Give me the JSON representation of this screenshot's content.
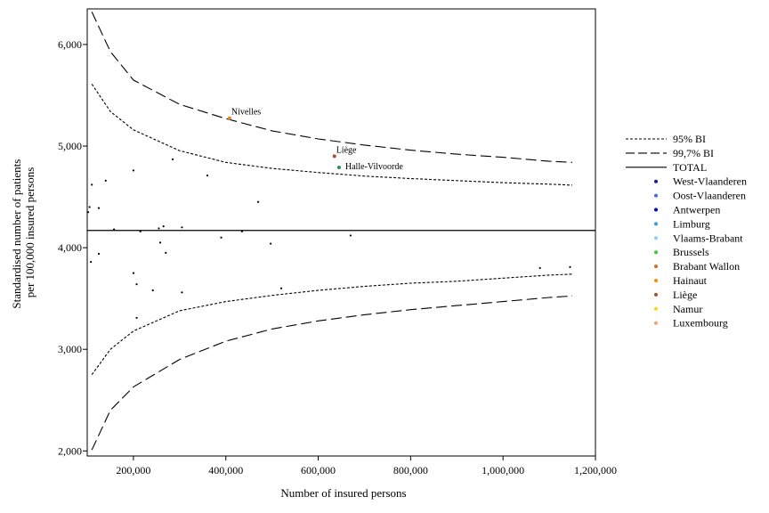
{
  "chart_data": {
    "type": "scatter",
    "xlabel": "Number of insured persons",
    "ylabel": [
      "Standardised number of patients",
      "per 100,000 insured persons"
    ],
    "xlim": [
      100000,
      1200000
    ],
    "ylim": [
      1950,
      6350
    ],
    "xticks": [
      {
        "value": 200000,
        "label": "200,000"
      },
      {
        "value": 400000,
        "label": "400,000"
      },
      {
        "value": 600000,
        "label": "600,000"
      },
      {
        "value": 800000,
        "label": "800,000"
      },
      {
        "value": 1000000,
        "label": "1,000,000"
      },
      {
        "value": 1200000,
        "label": "1,200,000"
      }
    ],
    "yticks": [
      {
        "value": 2000,
        "label": "2,000"
      },
      {
        "value": 3000,
        "label": "3,000"
      },
      {
        "value": 4000,
        "label": "4,000"
      },
      {
        "value": 5000,
        "label": "5,000"
      },
      {
        "value": 6000,
        "label": "6,000"
      }
    ],
    "grid": false,
    "legend_position": "right",
    "total": {
      "name": "TOTAL",
      "value": 4170
    },
    "bands": [
      {
        "name": "95% BI",
        "style": "dotted",
        "upper": [
          [
            110000,
            5610
          ],
          [
            150000,
            5340
          ],
          [
            200000,
            5160
          ],
          [
            300000,
            4955
          ],
          [
            400000,
            4840
          ],
          [
            500000,
            4780
          ],
          [
            600000,
            4740
          ],
          [
            700000,
            4705
          ],
          [
            800000,
            4680
          ],
          [
            900000,
            4660
          ],
          [
            1000000,
            4640
          ],
          [
            1100000,
            4625
          ],
          [
            1150000,
            4615
          ]
        ],
        "lower": [
          [
            110000,
            2750
          ],
          [
            150000,
            3000
          ],
          [
            200000,
            3180
          ],
          [
            300000,
            3380
          ],
          [
            400000,
            3470
          ],
          [
            500000,
            3530
          ],
          [
            600000,
            3580
          ],
          [
            700000,
            3620
          ],
          [
            800000,
            3650
          ],
          [
            900000,
            3670
          ],
          [
            1000000,
            3700
          ],
          [
            1100000,
            3730
          ],
          [
            1150000,
            3740
          ]
        ]
      },
      {
        "name": "99,7% BI",
        "style": "dashed",
        "upper": [
          [
            110000,
            6320
          ],
          [
            150000,
            5930
          ],
          [
            200000,
            5650
          ],
          [
            300000,
            5410
          ],
          [
            400000,
            5270
          ],
          [
            500000,
            5150
          ],
          [
            600000,
            5070
          ],
          [
            700000,
            5010
          ],
          [
            800000,
            4960
          ],
          [
            900000,
            4920
          ],
          [
            1000000,
            4890
          ],
          [
            1100000,
            4850
          ],
          [
            1150000,
            4840
          ]
        ],
        "lower": [
          [
            110000,
            2010
          ],
          [
            150000,
            2400
          ],
          [
            200000,
            2630
          ],
          [
            300000,
            2900
          ],
          [
            400000,
            3080
          ],
          [
            500000,
            3200
          ],
          [
            600000,
            3280
          ],
          [
            700000,
            3340
          ],
          [
            800000,
            3390
          ],
          [
            900000,
            3430
          ],
          [
            1000000,
            3470
          ],
          [
            1100000,
            3510
          ],
          [
            1150000,
            3525
          ]
        ]
      }
    ],
    "points": [
      {
        "x": 408000,
        "y": 5275,
        "label": "Nivelles",
        "color": "#e08a2c"
      },
      {
        "x": 635000,
        "y": 4900,
        "label": "Liège",
        "color": "#a0522d"
      },
      {
        "x": 645000,
        "y": 4790,
        "label": "Halle-Vilvoorde",
        "color": "#2e8b57"
      },
      {
        "x": 110000,
        "y": 4620,
        "color": "#000000"
      },
      {
        "x": 105000,
        "y": 4400,
        "color": "#000000"
      },
      {
        "x": 102000,
        "y": 4350,
        "color": "#000000"
      },
      {
        "x": 125000,
        "y": 4390,
        "color": "#000000"
      },
      {
        "x": 140000,
        "y": 4660,
        "color": "#000000"
      },
      {
        "x": 200000,
        "y": 4760,
        "color": "#000000"
      },
      {
        "x": 285000,
        "y": 4870,
        "color": "#000000"
      },
      {
        "x": 360000,
        "y": 4710,
        "color": "#000000"
      },
      {
        "x": 470000,
        "y": 4450,
        "color": "#000000"
      },
      {
        "x": 158000,
        "y": 4180,
        "color": "#000000"
      },
      {
        "x": 215000,
        "y": 4160,
        "color": "#000000"
      },
      {
        "x": 255000,
        "y": 4190,
        "color": "#000000"
      },
      {
        "x": 265000,
        "y": 4210,
        "color": "#000000"
      },
      {
        "x": 305000,
        "y": 4200,
        "color": "#000000"
      },
      {
        "x": 435000,
        "y": 4160,
        "color": "#000000"
      },
      {
        "x": 390000,
        "y": 4100,
        "color": "#000000"
      },
      {
        "x": 258000,
        "y": 4050,
        "color": "#000000"
      },
      {
        "x": 497000,
        "y": 4040,
        "color": "#000000"
      },
      {
        "x": 670000,
        "y": 4120,
        "color": "#000000"
      },
      {
        "x": 270000,
        "y": 3950,
        "color": "#000000"
      },
      {
        "x": 108000,
        "y": 3860,
        "color": "#000000"
      },
      {
        "x": 125000,
        "y": 3940,
        "color": "#000000"
      },
      {
        "x": 200000,
        "y": 3750,
        "color": "#000000"
      },
      {
        "x": 207000,
        "y": 3640,
        "color": "#000000"
      },
      {
        "x": 242000,
        "y": 3580,
        "color": "#000000"
      },
      {
        "x": 305000,
        "y": 3560,
        "color": "#000000"
      },
      {
        "x": 520000,
        "y": 3600,
        "color": "#000000"
      },
      {
        "x": 207000,
        "y": 3310,
        "color": "#000000"
      },
      {
        "x": 1080000,
        "y": 3800,
        "color": "#000000"
      },
      {
        "x": 1145000,
        "y": 3810,
        "color": "#000000"
      }
    ],
    "legend": [
      {
        "label": "95% BI",
        "kind": "line",
        "style": "dotted"
      },
      {
        "label": "99,7% BI",
        "kind": "line",
        "style": "dashed"
      },
      {
        "label": "TOTAL",
        "kind": "line",
        "style": "solid"
      },
      {
        "label": "West-Vlaanderen",
        "kind": "dot",
        "color": "#1a1a8c"
      },
      {
        "label": "Oost-Vlaanderen",
        "kind": "dot",
        "color": "#4169e1"
      },
      {
        "label": "Antwerpen",
        "kind": "dot",
        "color": "#0000cd"
      },
      {
        "label": "Limburg",
        "kind": "dot",
        "color": "#3a9ad9"
      },
      {
        "label": "Vlaams-Brabant",
        "kind": "dot",
        "color": "#87cefa"
      },
      {
        "label": "Brussels",
        "kind": "dot",
        "color": "#32cd32"
      },
      {
        "label": "Brabant Wallon",
        "kind": "dot",
        "color": "#d2691e"
      },
      {
        "label": "Hainaut",
        "kind": "dot",
        "color": "#ff8c00"
      },
      {
        "label": "Liège",
        "kind": "dot",
        "color": "#a0522d"
      },
      {
        "label": "Namur",
        "kind": "dot",
        "color": "#ffd700"
      },
      {
        "label": "Luxembourg",
        "kind": "dot",
        "color": "#f4a460"
      }
    ]
  }
}
